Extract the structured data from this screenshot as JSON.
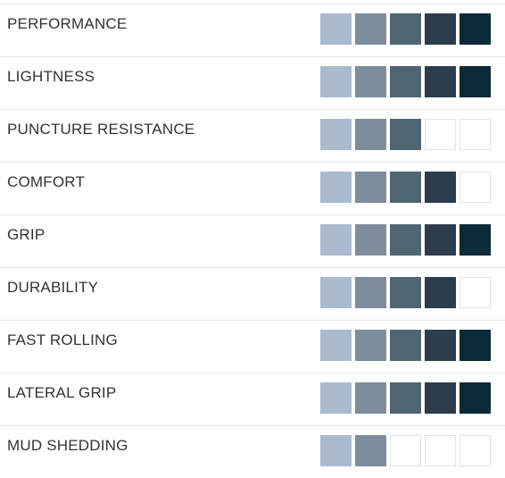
{
  "scale_max": 5,
  "segment_colors": [
    "#aabbd0",
    "#7d8d9c",
    "#4f6672",
    "#2c3d4d",
    "#0c2a38"
  ],
  "empty_color": "#ffffff",
  "ratings": [
    {
      "label": "PERFORMANCE",
      "level": 5
    },
    {
      "label": "LIGHTNESS",
      "level": 5
    },
    {
      "label": "PUNCTURE RESISTANCE",
      "level": 3
    },
    {
      "label": "COMFORT",
      "level": 4
    },
    {
      "label": "GRIP",
      "level": 5
    },
    {
      "label": "DURABILITY",
      "level": 4
    },
    {
      "label": "FAST ROLLING",
      "level": 5
    },
    {
      "label": "LATERAL GRIP",
      "level": 5
    },
    {
      "label": "MUD SHEDDING",
      "level": 2
    }
  ]
}
